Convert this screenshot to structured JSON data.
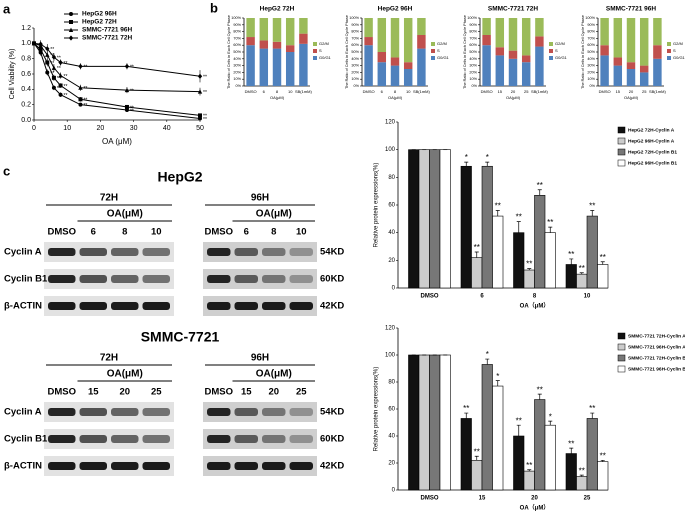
{
  "panel_labels": [
    "a",
    "b",
    "c"
  ],
  "chart_data": [
    {
      "type": "line",
      "x_label": "OA (μM)",
      "y_label": "Cell Viability (%)",
      "x": [
        0,
        2,
        4,
        6,
        8,
        14,
        28,
        50
      ],
      "xlim": [
        0,
        50
      ],
      "xticks": [
        0,
        10,
        20,
        30,
        40,
        50
      ],
      "ylim": [
        0,
        1.2
      ],
      "yticks": [
        {
          "value": 0,
          "label": "0.0"
        },
        {
          "value": 0.2,
          "label": "0.2"
        },
        {
          "value": 0.4,
          "label": "0.4"
        },
        {
          "value": 0.6,
          "label": "0.6"
        },
        {
          "value": 0.8,
          "label": "0.8"
        },
        {
          "value": 1,
          "label": "1.0"
        },
        {
          "value": 1.2,
          "label": "1.2"
        }
      ],
      "series": [
        {
          "name": "HepG2 96H",
          "color": "#000000",
          "marker": "circle",
          "values": [
            1.0,
            0.88,
            0.62,
            0.42,
            0.33,
            0.2,
            0.13,
            0.02
          ],
          "errors": [
            0.03,
            0.04,
            0.04,
            0.03,
            0.03,
            0.02,
            0.02,
            0.01
          ],
          "annotations": [
            null,
            null,
            "**",
            "**",
            "**",
            "**",
            "**",
            "**"
          ]
        },
        {
          "name": "HepG2 72H",
          "color": "#000000",
          "marker": "square",
          "values": [
            1.0,
            0.92,
            0.75,
            0.55,
            0.45,
            0.27,
            0.17,
            0.06
          ],
          "errors": [
            0.03,
            0.04,
            0.05,
            0.04,
            0.03,
            0.03,
            0.02,
            0.02
          ],
          "annotations": [
            null,
            null,
            "**",
            "**",
            "**",
            "**",
            "**",
            "**"
          ]
        },
        {
          "name": "SMMC-7721 96H",
          "color": "#000000",
          "marker": "triangle",
          "values": [
            1.0,
            0.97,
            0.85,
            0.68,
            0.58,
            0.42,
            0.39,
            0.37
          ],
          "errors": [
            0.03,
            0.05,
            0.05,
            0.05,
            0.04,
            0.04,
            0.04,
            0.05
          ],
          "annotations": [
            null,
            null,
            "**",
            "**",
            "**",
            "**",
            "**",
            "**"
          ]
        },
        {
          "name": "SMMC-7721 72H",
          "color": "#000000",
          "marker": "diamond",
          "values": [
            1.0,
            0.99,
            0.93,
            0.82,
            0.75,
            0.7,
            0.7,
            0.57
          ],
          "errors": [
            0.03,
            0.05,
            0.06,
            0.05,
            0.04,
            0.04,
            0.04,
            0.08
          ],
          "annotations": [
            null,
            null,
            "**",
            "**",
            "**",
            "**",
            "**",
            "**"
          ]
        }
      ]
    },
    {
      "type": "stacked_bar",
      "title": "HepG2 72H",
      "y_label": "The Ratio of Cells in Each Cell Cycle Phase",
      "categories": [
        "DMSO",
        "6",
        "8",
        "10",
        "SB(1mM)"
      ],
      "category_group": "OA(μM)",
      "ylim": [
        0,
        100
      ],
      "yticks": [
        {
          "value": 0,
          "label": "0%"
        },
        {
          "value": 10,
          "label": "10%"
        },
        {
          "value": 20,
          "label": "20%"
        },
        {
          "value": 30,
          "label": "30%"
        },
        {
          "value": 40,
          "label": "40%"
        },
        {
          "value": 50,
          "label": "50%"
        },
        {
          "value": 60,
          "label": "60%"
        },
        {
          "value": 70,
          "label": "70%"
        },
        {
          "value": 80,
          "label": "80%"
        },
        {
          "value": 90,
          "label": "90%"
        },
        {
          "value": 100,
          "label": "100%"
        }
      ],
      "series": [
        {
          "name": "G2/M",
          "color": "#9bbb59",
          "values": [
            28,
            33,
            35,
            40,
            23
          ]
        },
        {
          "name": "S",
          "color": "#c0504d",
          "values": [
            12,
            12,
            10,
            10,
            15
          ]
        },
        {
          "name": "G0/G1",
          "color": "#4f81bd",
          "values": [
            60,
            55,
            55,
            50,
            62
          ]
        }
      ]
    },
    {
      "type": "stacked_bar",
      "title": "HepG2 96H",
      "y_label": "The Ratio of Cells in Each Cell Cycle Phase",
      "categories": [
        "DMSO",
        "6",
        "8",
        "10",
        "SB(1mM)"
      ],
      "category_group": "OA(μM)",
      "ylim": [
        0,
        100
      ],
      "yticks": [
        {
          "value": 0,
          "label": "0%"
        },
        {
          "value": 10,
          "label": "10%"
        },
        {
          "value": 20,
          "label": "20%"
        },
        {
          "value": 30,
          "label": "30%"
        },
        {
          "value": 40,
          "label": "40%"
        },
        {
          "value": 50,
          "label": "50%"
        },
        {
          "value": 60,
          "label": "60%"
        },
        {
          "value": 70,
          "label": "70%"
        },
        {
          "value": 80,
          "label": "80%"
        },
        {
          "value": 90,
          "label": "90%"
        },
        {
          "value": 100,
          "label": "100%"
        }
      ],
      "series": [
        {
          "name": "G2/M",
          "color": "#9bbb59",
          "values": [
            28,
            50,
            58,
            65,
            25
          ]
        },
        {
          "name": "S",
          "color": "#c0504d",
          "values": [
            12,
            15,
            12,
            10,
            20
          ]
        },
        {
          "name": "G0/G1",
          "color": "#4f81bd",
          "values": [
            60,
            35,
            30,
            25,
            55
          ]
        }
      ]
    },
    {
      "type": "stacked_bar",
      "title": "SMMC-7721 72H",
      "y_label": "The Ratio of Cells in Each Cell Cycle Phase",
      "categories": [
        "DMSO",
        "15",
        "20",
        "25",
        "SB(1mM)"
      ],
      "category_group": "OA(μM)",
      "ylim": [
        0,
        100
      ],
      "yticks": [
        {
          "value": 0,
          "label": "0%"
        },
        {
          "value": 10,
          "label": "10%"
        },
        {
          "value": 20,
          "label": "20%"
        },
        {
          "value": 30,
          "label": "30%"
        },
        {
          "value": 40,
          "label": "40%"
        },
        {
          "value": 50,
          "label": "50%"
        },
        {
          "value": 60,
          "label": "60%"
        },
        {
          "value": 70,
          "label": "70%"
        },
        {
          "value": 80,
          "label": "80%"
        },
        {
          "value": 90,
          "label": "90%"
        },
        {
          "value": 100,
          "label": "100%"
        }
      ],
      "series": [
        {
          "name": "G2/M",
          "color": "#9bbb59",
          "values": [
            25,
            43,
            48,
            55,
            27
          ]
        },
        {
          "name": "S",
          "color": "#c0504d",
          "values": [
            15,
            12,
            12,
            10,
            15
          ]
        },
        {
          "name": "G0/G1",
          "color": "#4f81bd",
          "values": [
            60,
            45,
            40,
            35,
            58
          ]
        }
      ]
    },
    {
      "type": "stacked_bar",
      "title": "SMMC-7721 96H",
      "y_label": "The Ratio of Cells in Each Cell Cycle Phase",
      "categories": [
        "DMSO",
        "15",
        "20",
        "25",
        "SB(1mM)"
      ],
      "category_group": "OA(μM)",
      "ylim": [
        0,
        100
      ],
      "yticks": [
        {
          "value": 0,
          "label": "0%"
        },
        {
          "value": 10,
          "label": "10%"
        },
        {
          "value": 20,
          "label": "20%"
        },
        {
          "value": 30,
          "label": "30%"
        },
        {
          "value": 40,
          "label": "40%"
        },
        {
          "value": 50,
          "label": "50%"
        },
        {
          "value": 60,
          "label": "60%"
        },
        {
          "value": 70,
          "label": "70%"
        },
        {
          "value": 80,
          "label": "80%"
        },
        {
          "value": 90,
          "label": "90%"
        },
        {
          "value": 100,
          "label": "100%"
        }
      ],
      "series": [
        {
          "name": "G2/M",
          "color": "#9bbb59",
          "values": [
            40,
            58,
            65,
            70,
            40
          ]
        },
        {
          "name": "S",
          "color": "#c0504d",
          "values": [
            15,
            12,
            10,
            10,
            20
          ]
        },
        {
          "name": "G0/G1",
          "color": "#4f81bd",
          "values": [
            45,
            30,
            25,
            20,
            40
          ]
        }
      ]
    },
    {
      "type": "bar",
      "x_label": "OA（μM）",
      "y_label": "Relative protein expressions(%)",
      "categories": [
        "DMSO",
        "6",
        "8",
        "10"
      ],
      "ylim": [
        0,
        120
      ],
      "yticks": [
        0,
        20,
        40,
        60,
        80,
        100,
        120
      ],
      "series": [
        {
          "name": "HepG2 72H-Cyclin A",
          "color": "#111111",
          "values": [
            100,
            88,
            40,
            17
          ],
          "errors": [
            0,
            3,
            8,
            4
          ],
          "annotations": [
            null,
            "*",
            "**",
            "**"
          ]
        },
        {
          "name": "HepG2 96H-Cyclin A",
          "color": "#cccccc",
          "values": [
            100,
            22,
            13,
            10
          ],
          "errors": [
            0,
            4,
            1,
            1
          ],
          "annotations": [
            null,
            "**",
            "**",
            "**"
          ]
        },
        {
          "name": "HepG2 72H-Cyclin B1",
          "color": "#777777",
          "values": [
            100,
            88,
            67,
            52
          ],
          "errors": [
            0,
            3,
            4,
            4
          ],
          "annotations": [
            null,
            "*",
            "**",
            "**"
          ]
        },
        {
          "name": "HepG2 96H-Cyclin B1",
          "color": "#ffffff",
          "values": [
            100,
            52,
            40,
            17
          ],
          "errors": [
            0,
            4,
            4,
            2
          ],
          "annotations": [
            null,
            "**",
            "**",
            "**"
          ]
        }
      ]
    },
    {
      "type": "bar",
      "x_label": "OA（μM）",
      "y_label": "Relative protein expressions(%)",
      "categories": [
        "DMSO",
        "15",
        "20",
        "25"
      ],
      "ylim": [
        0,
        120
      ],
      "yticks": [
        0,
        20,
        40,
        60,
        80,
        100,
        120
      ],
      "series": [
        {
          "name": "SMMC-7721 72H-Cyclin A",
          "color": "#111111",
          "values": [
            100,
            53,
            40,
            27
          ],
          "errors": [
            0,
            4,
            8,
            4
          ],
          "annotations": [
            null,
            "**",
            "**",
            "**"
          ]
        },
        {
          "name": "SMMC-7721 96H-Cyclin A",
          "color": "#cccccc",
          "values": [
            100,
            22,
            14,
            10
          ],
          "errors": [
            0,
            3,
            1,
            1
          ],
          "annotations": [
            null,
            "**",
            "**",
            "**"
          ]
        },
        {
          "name": "SMMC-7721 72H-Cyclin B1",
          "color": "#777777",
          "values": [
            100,
            93,
            67,
            53
          ],
          "errors": [
            0,
            4,
            4,
            4
          ],
          "annotations": [
            null,
            "*",
            "**",
            "**"
          ]
        },
        {
          "name": "SMMC-7721 96H-Cyclin B1",
          "color": "#ffffff",
          "values": [
            100,
            77,
            48,
            21
          ],
          "errors": [
            0,
            4,
            3,
            1
          ],
          "annotations": [
            null,
            "*",
            "*",
            "**"
          ]
        }
      ]
    }
  ],
  "blots": [
    {
      "title": "HepG2",
      "proteins": [
        "Cyclin A",
        "Cyclin B1",
        "β-ACTIN"
      ],
      "sizes": [
        "54KD",
        "60KD",
        "42KD"
      ],
      "groups": [
        {
          "title": "72H",
          "treatment": "OA(μM)",
          "lanes": [
            "DMSO",
            "6",
            "8",
            "10"
          ]
        },
        {
          "title": "96H",
          "treatment": "OA(μM)",
          "lanes": [
            "DMSO",
            "6",
            "8",
            "10"
          ]
        }
      ]
    },
    {
      "title": "SMMC-7721",
      "proteins": [
        "Cyclin A",
        "Cyclin B1",
        "β-ACTIN"
      ],
      "sizes": [
        "54KD",
        "60KD",
        "42KD"
      ],
      "groups": [
        {
          "title": "72H",
          "treatment": "OA(μM)",
          "lanes": [
            "DMSO",
            "15",
            "20",
            "25"
          ]
        },
        {
          "title": "96H",
          "treatment": "OA(μM)",
          "lanes": [
            "DMSO",
            "15",
            "20",
            "25"
          ]
        }
      ]
    }
  ]
}
